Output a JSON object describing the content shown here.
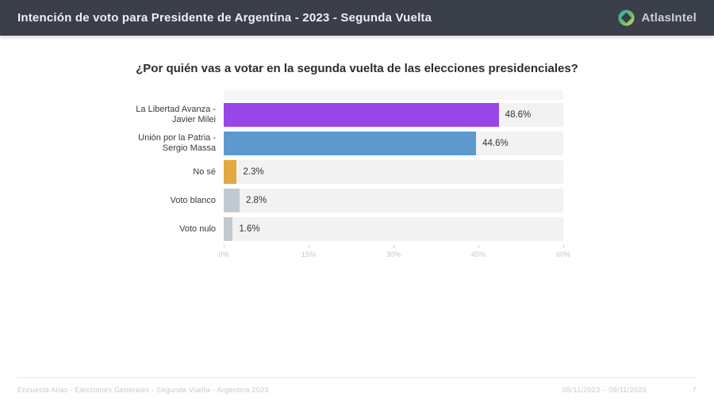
{
  "header": {
    "title": "Intención de voto para Presidente de Argentina - 2023 - Segunda Vuelta",
    "brand": "AtlasIntel"
  },
  "chart_data": {
    "type": "bar",
    "orientation": "horizontal",
    "title": "¿Por quién vas a votar en la segunda vuelta de las elecciones presidenciales?",
    "categories": [
      [
        "La Libertad Avanza -",
        "Javier Milei"
      ],
      [
        "Unión por la Patria -",
        "Sergio Massa"
      ],
      [
        "No sé"
      ],
      [
        "Voto blanco"
      ],
      [
        "Voto nulo"
      ]
    ],
    "values": [
      48.6,
      44.6,
      2.3,
      2.8,
      1.6
    ],
    "value_labels": [
      "48.6%",
      "44.6%",
      "2.3%",
      "2.8%",
      "1.6%"
    ],
    "bar_colors": [
      "#9a45e8",
      "#5b99cf",
      "#e3a83e",
      "#c2cad1",
      "#c2cad1"
    ],
    "track_color": "#f1f2f1",
    "xlim": [
      0,
      60
    ],
    "xtick_values": [
      0,
      15,
      30,
      45,
      60
    ],
    "xticks": [
      "0%",
      "15%",
      "30%",
      "45%",
      "60%"
    ],
    "grid": false,
    "legend": "none"
  },
  "footer": {
    "left": "Encuesta Atlas - Elecciones Generales - Segunda Vuelta - Argentina 2023",
    "dates": "05/11/2023 – 09/11/2023",
    "page": "7"
  }
}
